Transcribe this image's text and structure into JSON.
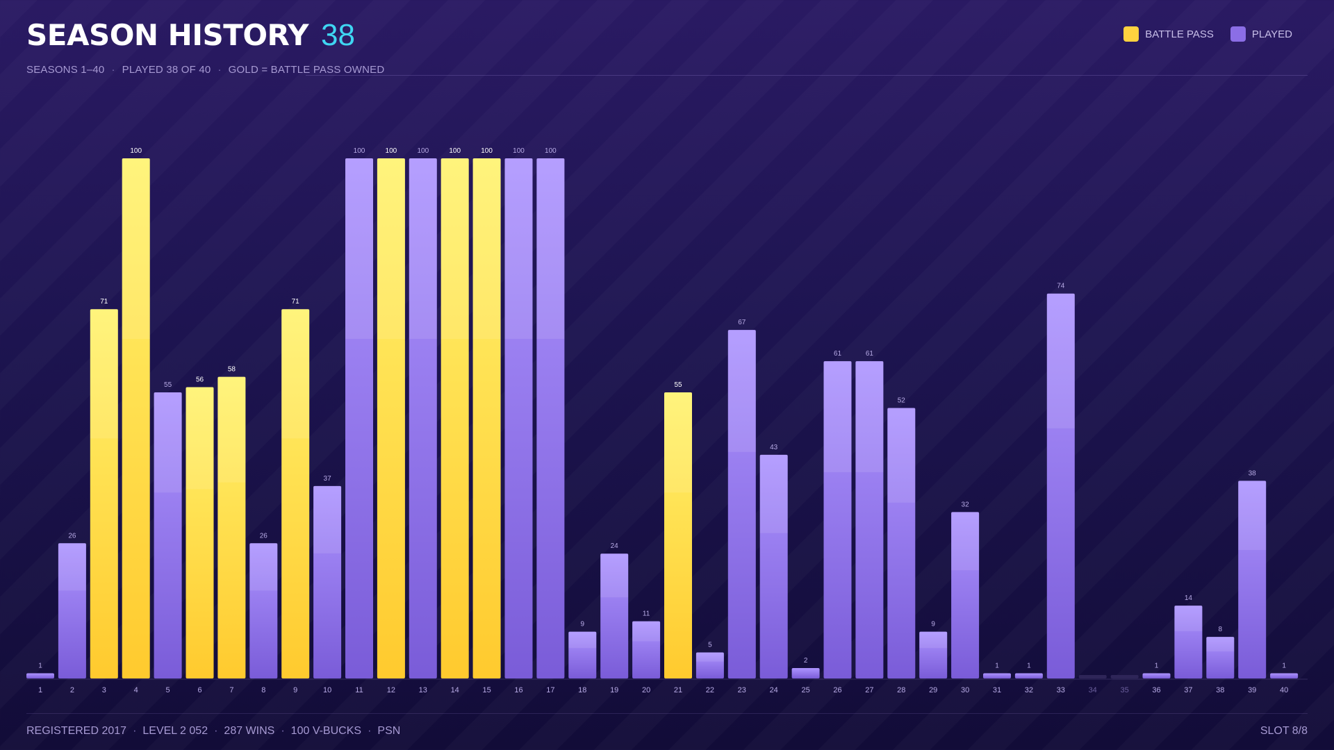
{
  "header": {
    "title": "SEASON HISTORY",
    "count": "38",
    "subtitle": [
      "SEASONS 1–40",
      "PLAYED 38 OF 40",
      "GOLD = BATTLE PASS OWNED"
    ],
    "subtitle_sep": "·"
  },
  "legend": [
    {
      "label": "BATTLE PASS",
      "color": "#ffd23f"
    },
    {
      "label": "PLAYED",
      "color": "#8b6ee6"
    }
  ],
  "footer": {
    "items": [
      "REGISTERED 2017",
      "LEVEL 2 052",
      "287 WINS",
      "100 V-BUCKS",
      "PSN"
    ],
    "sep": "·",
    "slot": "SLOT 8/8"
  },
  "colors": {
    "gold_top": "#fff36e",
    "gold_bottom": "#ffca2e",
    "purple_top": "#ad94ff",
    "purple_bottom": "#7a5cd8",
    "unplayed": "#2e2558",
    "label_bp": "#ffffff",
    "label_played": "#b8abe6",
    "axis_label": "#b8abe6",
    "axis_label_unplayed": "#6a5e9c"
  },
  "chart_data": {
    "type": "bar",
    "xlabel": "",
    "ylabel": "",
    "ylim": [
      0,
      100
    ],
    "categories": [
      "1",
      "2",
      "3",
      "4",
      "5",
      "6",
      "7",
      "8",
      "9",
      "10",
      "11",
      "12",
      "13",
      "14",
      "15",
      "16",
      "17",
      "18",
      "19",
      "20",
      "21",
      "22",
      "23",
      "24",
      "25",
      "26",
      "27",
      "28",
      "29",
      "30",
      "31",
      "32",
      "33",
      "34",
      "35",
      "36",
      "37",
      "38",
      "39",
      "40"
    ],
    "values": [
      1,
      26,
      71,
      100,
      55,
      56,
      58,
      26,
      71,
      37,
      100,
      100,
      100,
      100,
      100,
      100,
      100,
      9,
      24,
      11,
      55,
      5,
      67,
      43,
      2,
      61,
      61,
      52,
      9,
      32,
      1,
      1,
      74,
      0,
      0,
      1,
      14,
      8,
      38,
      1
    ],
    "battle_pass": [
      false,
      false,
      true,
      true,
      false,
      true,
      true,
      false,
      true,
      false,
      false,
      true,
      false,
      true,
      true,
      false,
      false,
      false,
      false,
      false,
      true,
      false,
      false,
      false,
      false,
      false,
      false,
      false,
      false,
      false,
      false,
      false,
      false,
      false,
      false,
      false,
      false,
      false,
      false,
      false
    ],
    "played": [
      true,
      true,
      true,
      true,
      true,
      true,
      true,
      true,
      true,
      true,
      true,
      true,
      true,
      true,
      true,
      true,
      true,
      true,
      true,
      true,
      true,
      true,
      true,
      true,
      true,
      true,
      true,
      true,
      true,
      true,
      true,
      true,
      true,
      false,
      false,
      true,
      true,
      true,
      true,
      true
    ]
  }
}
